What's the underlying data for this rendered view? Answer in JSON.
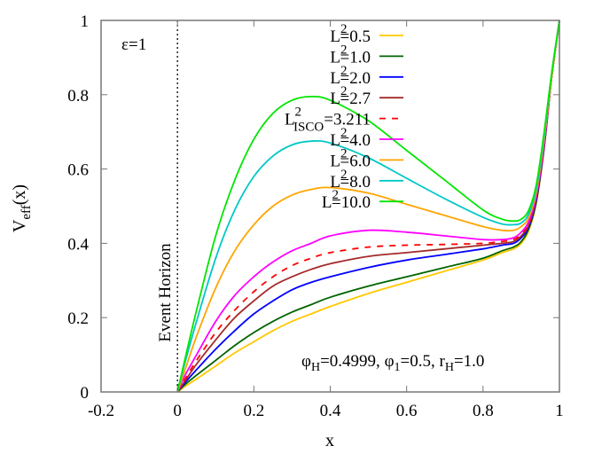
{
  "chart_data": {
    "type": "line",
    "title": "",
    "xlabel": "x",
    "ylabel": "V",
    "ylabel_sub": "eff",
    "ylabel_suffix": "(x)",
    "xlim": [
      -0.2,
      1
    ],
    "ylim": [
      0,
      1
    ],
    "xticks": [
      "-0.2",
      "0",
      "0.2",
      "0.4",
      "0.6",
      "0.8",
      "1"
    ],
    "yticks": [
      "0",
      "0.2",
      "0.4",
      "0.6",
      "0.8",
      "1"
    ],
    "grid": false,
    "legend_placement": "top-center",
    "annotations": {
      "epsilon": "ε=1",
      "event_horizon": "Event Horizon",
      "event_horizon_x": 0,
      "params": [
        {
          "base": "φ",
          "sub": "H",
          "rest": "=0.4999, "
        },
        {
          "base": "φ",
          "sub": "1",
          "rest": "=0.5, "
        },
        {
          "base": "r",
          "sub": "H",
          "rest": "=1.0"
        }
      ]
    },
    "x": [
      0,
      0.02,
      0.05,
      0.1,
      0.15,
      0.2,
      0.25,
      0.3,
      0.35,
      0.4,
      0.5,
      0.6,
      0.7,
      0.8,
      0.85,
      0.88,
      0.9,
      0.92,
      0.94,
      0.96,
      0.98,
      1
    ],
    "series": [
      {
        "name": "L²=0.5",
        "label_base": "L",
        "label_sup": "2",
        "label_sub": "",
        "label_rest": "=0.5",
        "color": "#ffc800",
        "dash": false,
        "values": [
          0,
          0.015,
          0.035,
          0.07,
          0.105,
          0.135,
          0.165,
          0.19,
          0.21,
          0.23,
          0.265,
          0.295,
          0.325,
          0.355,
          0.375,
          0.385,
          0.4,
          0.435,
          0.51,
          0.655,
          0.85,
          1
        ]
      },
      {
        "name": "L²=1.0",
        "label_base": "L",
        "label_sup": "2",
        "label_sub": "",
        "label_rest": "=1.0",
        "color": "#006400",
        "dash": false,
        "values": [
          0,
          0.02,
          0.045,
          0.085,
          0.125,
          0.16,
          0.19,
          0.215,
          0.235,
          0.255,
          0.285,
          0.31,
          0.335,
          0.36,
          0.38,
          0.39,
          0.405,
          0.44,
          0.515,
          0.66,
          0.85,
          1
        ]
      },
      {
        "name": "L²=2.0",
        "label_base": "L",
        "label_sup": "2",
        "label_sub": "",
        "label_rest": "=2.0",
        "color": "#0000ff",
        "dash": false,
        "values": [
          0,
          0.025,
          0.06,
          0.115,
          0.165,
          0.21,
          0.245,
          0.275,
          0.295,
          0.31,
          0.335,
          0.355,
          0.37,
          0.385,
          0.395,
          0.4,
          0.415,
          0.445,
          0.52,
          0.66,
          0.85,
          1
        ]
      },
      {
        "name": "L²=2.7",
        "label_base": "L",
        "label_sup": "2",
        "label_sub": "",
        "label_rest": "=2.7",
        "color": "#a52a2a",
        "dash": false,
        "values": [
          0,
          0.03,
          0.075,
          0.14,
          0.2,
          0.245,
          0.285,
          0.31,
          0.33,
          0.345,
          0.365,
          0.375,
          0.385,
          0.395,
          0.4,
          0.405,
          0.42,
          0.45,
          0.525,
          0.665,
          0.85,
          1
        ]
      },
      {
        "name": "L²ISCO=3.211",
        "label_base": "L",
        "label_sup": "2",
        "label_sub": "ISCO",
        "label_rest": "=3.211",
        "color": "#ff0000",
        "dash": true,
        "values": [
          0,
          0.035,
          0.085,
          0.16,
          0.22,
          0.27,
          0.31,
          0.34,
          0.36,
          0.375,
          0.39,
          0.395,
          0.397,
          0.4,
          0.405,
          0.41,
          0.425,
          0.455,
          0.53,
          0.67,
          0.85,
          1
        ]
      },
      {
        "name": "L²=4.0",
        "label_base": "L",
        "label_sup": "2",
        "label_sub": "",
        "label_rest": "=4.0",
        "color": "#ff00ff",
        "dash": false,
        "values": [
          0,
          0.045,
          0.1,
          0.19,
          0.26,
          0.31,
          0.35,
          0.38,
          0.4,
          0.42,
          0.435,
          0.43,
          0.42,
          0.41,
          0.41,
          0.415,
          0.43,
          0.46,
          0.53,
          0.67,
          0.85,
          1
        ]
      },
      {
        "name": "L²=6.0",
        "label_base": "L",
        "label_sup": "2",
        "label_sub": "",
        "label_rest": "=6.0",
        "color": "#ffa500",
        "dash": false,
        "values": [
          0,
          0.06,
          0.15,
          0.28,
          0.38,
          0.45,
          0.5,
          0.53,
          0.545,
          0.55,
          0.535,
          0.505,
          0.475,
          0.445,
          0.435,
          0.435,
          0.445,
          0.47,
          0.54,
          0.68,
          0.85,
          1
        ]
      },
      {
        "name": "L²=8.0",
        "label_base": "L",
        "label_sup": "2",
        "label_sub": "",
        "label_rest": "=8.0",
        "color": "#00c8c8",
        "dash": false,
        "values": [
          0,
          0.08,
          0.19,
          0.36,
          0.49,
          0.58,
          0.635,
          0.665,
          0.675,
          0.67,
          0.63,
          0.575,
          0.52,
          0.47,
          0.452,
          0.45,
          0.455,
          0.48,
          0.55,
          0.69,
          0.86,
          1
        ]
      },
      {
        "name": "L²=10.0",
        "label_base": "L",
        "label_sup": "2",
        "label_sub": "",
        "label_rest": "=10.0",
        "color": "#00e600",
        "dash": false,
        "values": [
          0,
          0.09,
          0.22,
          0.42,
          0.57,
          0.68,
          0.75,
          0.785,
          0.795,
          0.785,
          0.73,
          0.65,
          0.57,
          0.49,
          0.465,
          0.46,
          0.465,
          0.49,
          0.56,
          0.7,
          0.86,
          1
        ]
      }
    ]
  }
}
